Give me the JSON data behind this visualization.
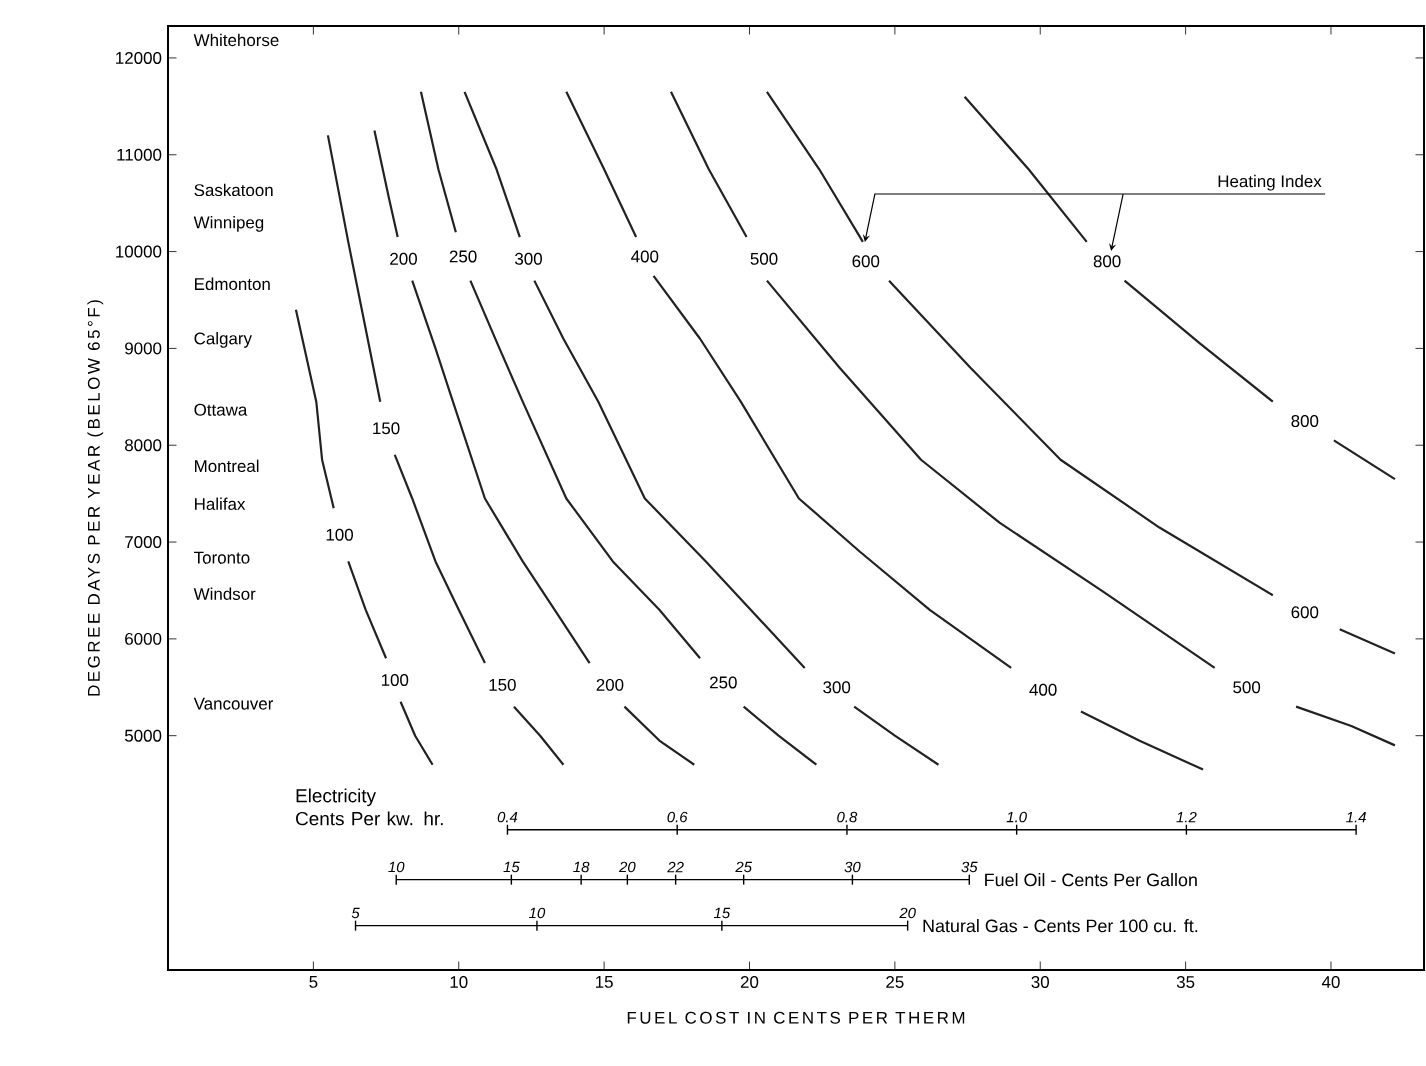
{
  "chart_data": {
    "type": "line",
    "xlabel": "FUEL COST IN CENTS PER THERM",
    "ylabel": "DEGREE DAYS PER YEAR (BELOW 65°F)",
    "xlim": [
      0,
      43.2
    ],
    "ylim": [
      2580,
      12330
    ],
    "xticks": [
      5,
      10,
      15,
      20,
      25,
      30,
      35,
      40
    ],
    "yticks": [
      5000,
      6000,
      7000,
      8000,
      9000,
      10000,
      11000,
      12000
    ],
    "x2label": "Electricity Cents Per kw. hr.",
    "x2lim": [
      0,
      1.48
    ],
    "x2ticks": [
      0.4,
      0.6,
      0.8,
      {
        "value": 1,
        "label": "1.0"
      },
      1.2,
      1.4
    ],
    "marker": "none",
    "line_style": "solid",
    "series": [
      {
        "name": "100",
        "color": "#222222",
        "x": [
          4.4,
          5.1,
          5.3,
          5.7,
          5.9,
          6.2,
          6.8,
          7.5,
          7.8,
          8.0,
          8.5,
          9.1
        ],
        "values": [
          9400,
          8450,
          7850,
          7350,
          null,
          6800,
          6300,
          5800,
          null,
          5350,
          5000,
          4700
        ]
      },
      {
        "name": "150",
        "color": "#222222",
        "x": [
          5.5,
          6.2,
          6.8,
          7.3,
          7.5,
          7.8,
          8.4,
          9.2,
          10.0,
          10.9,
          11.5,
          11.9,
          12.8,
          13.6
        ],
        "values": [
          11200,
          10100,
          9200,
          8450,
          null,
          7900,
          7450,
          6800,
          6300,
          5750,
          null,
          5300,
          5000,
          4700
        ]
      },
      {
        "name": "200",
        "color": "#222222",
        "x": [
          7.1,
          7.6,
          7.9,
          8.1,
          8.4,
          9.2,
          9.8,
          10.9,
          12.2,
          13.3,
          14.5,
          15.2,
          15.7,
          16.9,
          18.1
        ],
        "values": [
          11250,
          10550,
          10150,
          null,
          9700,
          9000,
          8450,
          7450,
          6800,
          6300,
          5750,
          null,
          5300,
          4950,
          4700
        ]
      },
      {
        "name": "250",
        "color": "#222222",
        "x": [
          8.7,
          9.3,
          9.9,
          10.15,
          10.4,
          11.4,
          12.2,
          13.7,
          15.3,
          16.9,
          18.3,
          19.1,
          19.8,
          21.0,
          22.3
        ],
        "values": [
          11650,
          10850,
          10200,
          null,
          9700,
          9000,
          8450,
          7450,
          6800,
          6300,
          5800,
          null,
          5300,
          5000,
          4700
        ]
      },
      {
        "name": "300",
        "color": "#222222",
        "x": [
          10.2,
          11.3,
          12.1,
          12.4,
          12.6,
          13.6,
          14.8,
          16.4,
          18.5,
          20.2,
          21.9,
          23.0,
          23.6,
          25.0,
          26.5
        ],
        "values": [
          11650,
          10850,
          10150,
          null,
          9700,
          9100,
          8450,
          7450,
          6800,
          6250,
          5700,
          null,
          5300,
          5000,
          4700
        ]
      },
      {
        "name": "400",
        "color": "#222222",
        "x": [
          13.7,
          15.0,
          16.1,
          16.4,
          16.7,
          18.3,
          19.7,
          21.7,
          23.8,
          26.2,
          29.0,
          30.1,
          31.4,
          33.4,
          35.6
        ],
        "values": [
          11650,
          10850,
          10150,
          null,
          9750,
          9100,
          8450,
          7450,
          6900,
          6300,
          5700,
          null,
          5250,
          4950,
          4650
        ]
      },
      {
        "name": "500",
        "color": "#222222",
        "x": [
          17.3,
          18.6,
          19.9,
          20.5,
          20.6,
          23.1,
          25.9,
          28.6,
          32.1,
          36.0,
          37.1,
          38.8,
          40.7,
          42.2
        ],
        "values": [
          11650,
          10850,
          10150,
          null,
          9700,
          8800,
          7850,
          7200,
          6500,
          5700,
          null,
          5300,
          5100,
          4900
        ]
      },
      {
        "name": "600",
        "color": "#222222",
        "x": [
          20.6,
          22.4,
          23.9,
          24.0,
          24.8,
          27.6,
          30.7,
          34.1,
          38.0,
          39.1,
          40.3,
          42.2
        ],
        "values": [
          11650,
          10850,
          10100,
          null,
          9700,
          8800,
          7850,
          7150,
          6450,
          null,
          6100,
          5850
        ]
      },
      {
        "name": "800",
        "color": "#222222",
        "x": [
          27.4,
          29.6,
          31.6,
          32.3,
          32.9,
          35.5,
          38.0,
          39.1,
          40.1,
          42.2
        ],
        "values": [
          11600,
          10850,
          10100,
          null,
          9700,
          9050,
          8450,
          null,
          8050,
          7650
        ]
      }
    ],
    "annotations": [
      {
        "text": "Heating Index",
        "x": 23.9,
        "y": 10100
      },
      "Whitehorse",
      "Saskatoon",
      "Winnipeg",
      "Edmonton",
      "Calgary",
      "Ottawa",
      "Montreal",
      "Halifax",
      "Toronto",
      "Windsor",
      "Vancouver",
      "Fuel Oil - Cents Per Gallon",
      "10",
      "15",
      "18",
      "20",
      "22",
      "25",
      "30",
      "35",
      "Natural Gas - Cents Per 100 cu. ft.",
      "5",
      "10",
      "15",
      "20"
    ]
  }
}
